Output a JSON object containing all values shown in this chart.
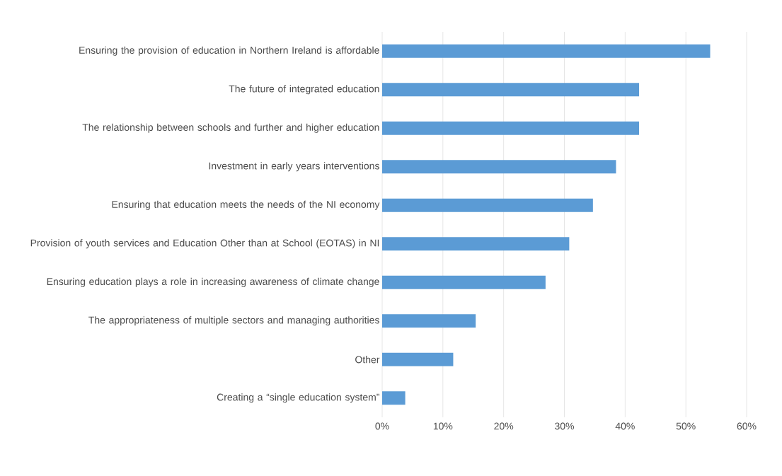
{
  "chart_data": {
    "type": "bar",
    "orientation": "horizontal",
    "categories": [
      "Ensuring the provision of education in Northern Ireland is affordable",
      "The future of integrated education",
      "The relationship between schools and further and higher education",
      "Investment in early years interventions",
      "Ensuring that education meets the needs of the NI economy",
      "Provision of youth services and Education Other than at School (EOTAS) in NI",
      "Ensuring education plays a role in increasing awareness of climate change",
      "The appropriateness of multiple sectors and managing authorities",
      "Other",
      "Creating a “single education system”"
    ],
    "values": [
      54.0,
      42.3,
      42.3,
      38.5,
      34.7,
      30.8,
      26.9,
      15.4,
      11.7,
      3.8
    ],
    "color": "#5b9bd5",
    "xlim": [
      0,
      60
    ],
    "xticks": [
      {
        "value": 0,
        "label": "0%"
      },
      {
        "value": 10,
        "label": "10%"
      },
      {
        "value": 20,
        "label": "20%"
      },
      {
        "value": 30,
        "label": "30%"
      },
      {
        "value": 40,
        "label": "40%"
      },
      {
        "value": 50,
        "label": "50%"
      },
      {
        "value": 60,
        "label": "60%"
      }
    ],
    "grid": "x"
  }
}
